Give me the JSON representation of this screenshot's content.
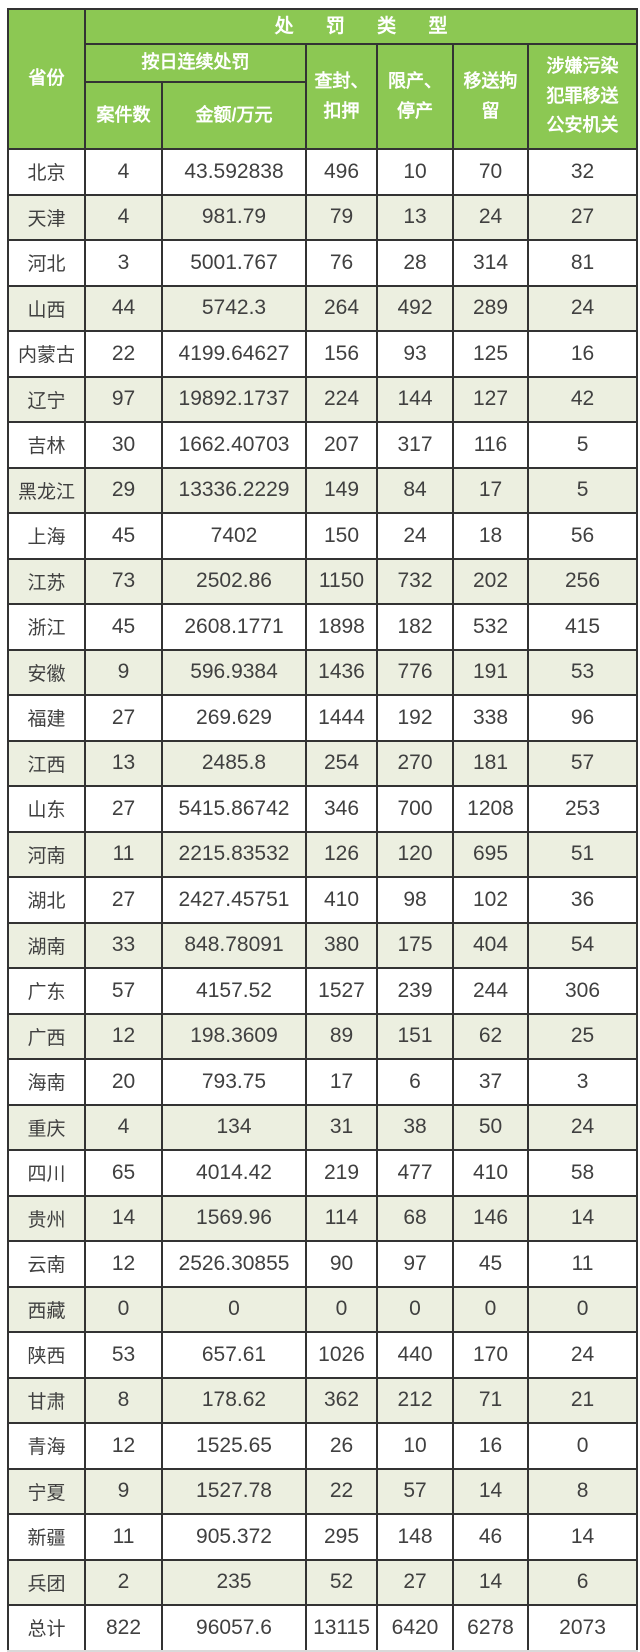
{
  "colors": {
    "header_green": "#8cc853",
    "stripe": "#ecefe0",
    "border": "#333333",
    "text": "#404040",
    "header_text": "#ffffff"
  },
  "chart_data": {
    "type": "table",
    "title": "处罚类型",
    "header": {
      "province": "省份",
      "group_title": "处罚类型",
      "daily_penalty_group": "按日连续处罚",
      "case_count": "案件数",
      "amount_unit": "金额/万元",
      "seizure": "查封、\n扣押",
      "production_limit": "限产、\n停产",
      "detention_transfer": "移送拘\n留",
      "criminal_transfer": "涉嫌污染\n犯罪移送\n公安机关"
    },
    "columns": [
      "省份",
      "案件数",
      "金额/万元",
      "查封、扣押",
      "限产、停产",
      "移送拘留",
      "涉嫌污染犯罪移送公安机关"
    ],
    "rows": [
      {
        "province": "北京",
        "values": [
          "4",
          "43.592838",
          "496",
          "10",
          "70",
          "32"
        ]
      },
      {
        "province": "天津",
        "values": [
          "4",
          "981.79",
          "79",
          "13",
          "24",
          "27"
        ]
      },
      {
        "province": "河北",
        "values": [
          "3",
          "5001.767",
          "76",
          "28",
          "314",
          "81"
        ]
      },
      {
        "province": "山西",
        "values": [
          "44",
          "5742.3",
          "264",
          "492",
          "289",
          "24"
        ]
      },
      {
        "province": "内蒙古",
        "values": [
          "22",
          "4199.64627",
          "156",
          "93",
          "125",
          "16"
        ]
      },
      {
        "province": "辽宁",
        "values": [
          "97",
          "19892.1737",
          "224",
          "144",
          "127",
          "42"
        ]
      },
      {
        "province": "吉林",
        "values": [
          "30",
          "1662.40703",
          "207",
          "317",
          "116",
          "5"
        ]
      },
      {
        "province": "黑龙江",
        "values": [
          "29",
          "13336.2229",
          "149",
          "84",
          "17",
          "5"
        ]
      },
      {
        "province": "上海",
        "values": [
          "45",
          "7402",
          "150",
          "24",
          "18",
          "56"
        ]
      },
      {
        "province": "江苏",
        "values": [
          "73",
          "2502.86",
          "1150",
          "732",
          "202",
          "256"
        ]
      },
      {
        "province": "浙江",
        "values": [
          "45",
          "2608.1771",
          "1898",
          "182",
          "532",
          "415"
        ]
      },
      {
        "province": "安徽",
        "values": [
          "9",
          "596.9384",
          "1436",
          "776",
          "191",
          "53"
        ]
      },
      {
        "province": "福建",
        "values": [
          "27",
          "269.629",
          "1444",
          "192",
          "338",
          "96"
        ]
      },
      {
        "province": "江西",
        "values": [
          "13",
          "2485.8",
          "254",
          "270",
          "181",
          "57"
        ]
      },
      {
        "province": "山东",
        "values": [
          "27",
          "5415.86742",
          "346",
          "700",
          "1208",
          "253"
        ]
      },
      {
        "province": "河南",
        "values": [
          "11",
          "2215.83532",
          "126",
          "120",
          "695",
          "51"
        ]
      },
      {
        "province": "湖北",
        "values": [
          "27",
          "2427.45751",
          "410",
          "98",
          "102",
          "36"
        ]
      },
      {
        "province": "湖南",
        "values": [
          "33",
          "848.78091",
          "380",
          "175",
          "404",
          "54"
        ]
      },
      {
        "province": "广东",
        "values": [
          "57",
          "4157.52",
          "1527",
          "239",
          "244",
          "306"
        ]
      },
      {
        "province": "广西",
        "values": [
          "12",
          "198.3609",
          "89",
          "151",
          "62",
          "25"
        ]
      },
      {
        "province": "海南",
        "values": [
          "20",
          "793.75",
          "17",
          "6",
          "37",
          "3"
        ]
      },
      {
        "province": "重庆",
        "values": [
          "4",
          "134",
          "31",
          "38",
          "50",
          "24"
        ]
      },
      {
        "province": "四川",
        "values": [
          "65",
          "4014.42",
          "219",
          "477",
          "410",
          "58"
        ]
      },
      {
        "province": "贵州",
        "values": [
          "14",
          "1569.96",
          "114",
          "68",
          "146",
          "14"
        ]
      },
      {
        "province": "云南",
        "values": [
          "12",
          "2526.30855",
          "90",
          "97",
          "45",
          "11"
        ]
      },
      {
        "province": "西藏",
        "values": [
          "0",
          "0",
          "0",
          "0",
          "0",
          "0"
        ]
      },
      {
        "province": "陕西",
        "values": [
          "53",
          "657.61",
          "1026",
          "440",
          "170",
          "24"
        ]
      },
      {
        "province": "甘肃",
        "values": [
          "8",
          "178.62",
          "362",
          "212",
          "71",
          "21"
        ]
      },
      {
        "province": "青海",
        "values": [
          "12",
          "1525.65",
          "26",
          "10",
          "16",
          "0"
        ]
      },
      {
        "province": "宁夏",
        "values": [
          "9",
          "1527.78",
          "22",
          "57",
          "14",
          "8"
        ]
      },
      {
        "province": "新疆",
        "values": [
          "11",
          "905.372",
          "295",
          "148",
          "46",
          "14"
        ]
      },
      {
        "province": "兵团",
        "values": [
          "2",
          "235",
          "52",
          "27",
          "14",
          "6"
        ]
      },
      {
        "province": "总计",
        "values": [
          "822",
          "96057.6",
          "13115",
          "6420",
          "6278",
          "2073"
        ]
      }
    ]
  }
}
